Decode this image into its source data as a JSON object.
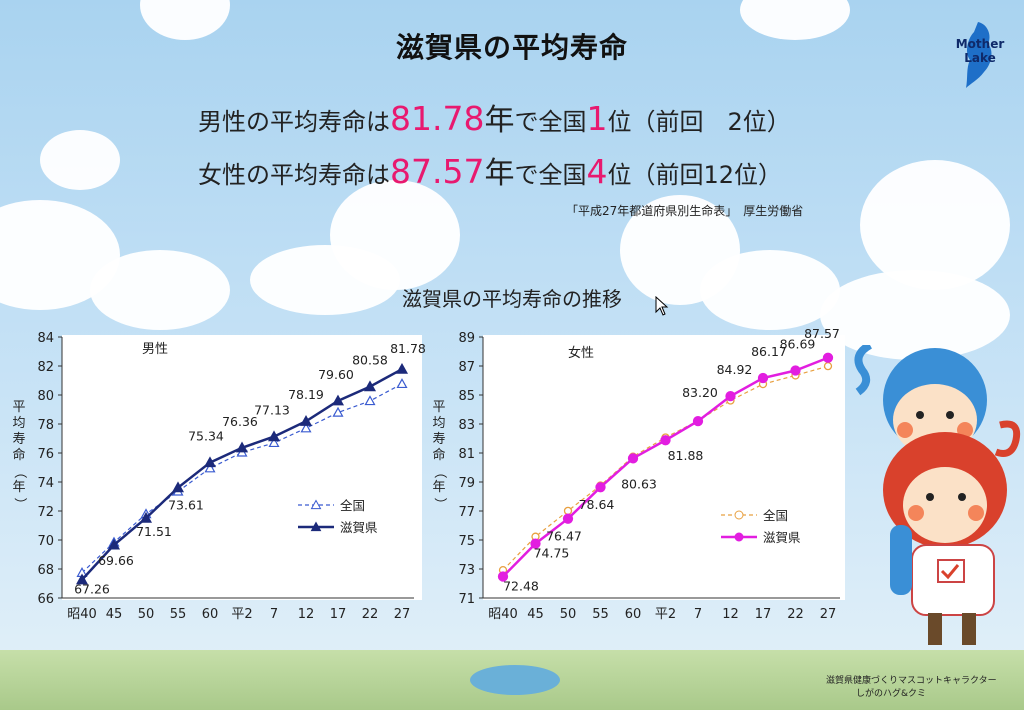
{
  "page": {
    "title": "滋賀県の平均寿命",
    "male_line": {
      "prefix": "男性の平均寿命は",
      "value": "81.78",
      "unit": "年",
      "mid": "で全国",
      "rank": "1",
      "suffix": "位（前回　2位）"
    },
    "female_line": {
      "prefix": "女性の平均寿命は",
      "value": "87.57",
      "unit": "年",
      "mid": "で全国",
      "rank": "4",
      "suffix": "位（前回12位）"
    },
    "source": "「平成27年都道府県別生命表」　厚生労働省",
    "subtitle": "滋賀県の平均寿命の推移",
    "logo_text": [
      "Mother",
      "Lake"
    ],
    "credit": [
      "滋賀県健康づくりマスコットキャラクター",
      "しがのハグ&クミ"
    ],
    "colors": {
      "highlight": "#e8196f",
      "male_series": "#1c2a7a",
      "female_series": "#e21ee0",
      "national_female": "#e8a040"
    }
  },
  "chart_data": [
    {
      "type": "line",
      "title": "男性",
      "ylabel": "平均寿命（年）",
      "ylim": [
        66,
        84
      ],
      "yticks": [
        66,
        68,
        70,
        72,
        74,
        76,
        78,
        80,
        82,
        84
      ],
      "categories": [
        "昭40",
        "45",
        "50",
        "55",
        "60",
        "平2",
        "7",
        "12",
        "17",
        "22",
        "27"
      ],
      "legend_position": "lower-right",
      "series": [
        {
          "name": "全国",
          "style": "dashed-open-triangle",
          "color": "#3a5bd0",
          "values": [
            67.74,
            69.84,
            71.79,
            73.35,
            74.95,
            76.04,
            76.7,
            77.71,
            78.79,
            79.59,
            80.77
          ]
        },
        {
          "name": "滋賀県",
          "style": "solid-filled-triangle",
          "color": "#1c2a7a",
          "values": [
            67.26,
            69.66,
            71.51,
            73.61,
            75.34,
            76.36,
            77.13,
            78.19,
            79.6,
            80.58,
            81.78
          ],
          "labels": [
            "67.26",
            "69.66",
            "71.51",
            "73.61",
            "75.34",
            "76.36",
            "77.13",
            "78.19",
            "79.60",
            "80.58",
            "81.78"
          ]
        }
      ]
    },
    {
      "type": "line",
      "title": "女性",
      "ylabel": "平均寿命（年）",
      "ylim": [
        71,
        89
      ],
      "yticks": [
        71,
        73,
        75,
        77,
        79,
        81,
        83,
        85,
        87,
        89
      ],
      "categories": [
        "昭40",
        "45",
        "50",
        "55",
        "60",
        "平2",
        "7",
        "12",
        "17",
        "22",
        "27"
      ],
      "legend_position": "lower-right",
      "series": [
        {
          "name": "全国",
          "style": "dashed-open-circle",
          "color": "#e8a040",
          "values": [
            72.92,
            75.23,
            77.01,
            78.76,
            80.75,
            82.07,
            83.22,
            84.62,
            85.75,
            86.35,
            86.99
          ]
        },
        {
          "name": "滋賀県",
          "style": "solid-filled-circle",
          "color": "#e21ee0",
          "values": [
            72.48,
            74.75,
            76.47,
            78.64,
            80.63,
            81.88,
            83.2,
            84.92,
            86.17,
            86.69,
            87.57
          ],
          "labels": [
            "72.48",
            "74.75",
            "76.47",
            "78.64",
            "80.63",
            "81.88",
            "83.20",
            "84.92",
            "86.17",
            "86.69",
            "87.57"
          ]
        }
      ]
    }
  ]
}
